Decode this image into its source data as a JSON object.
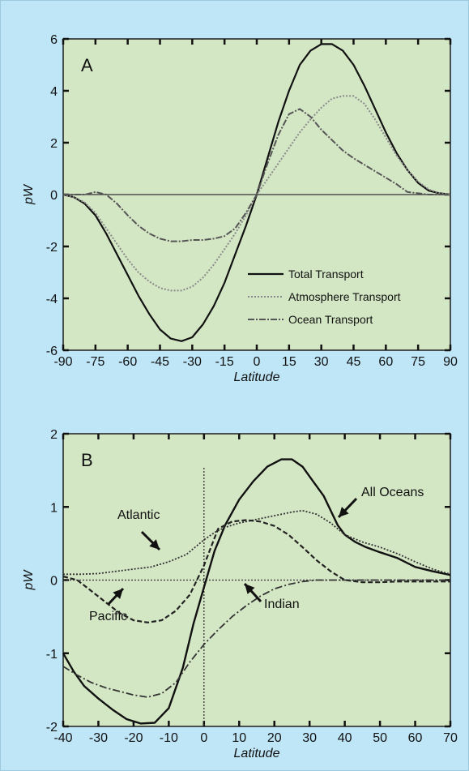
{
  "colors": {
    "page_background": "#bfe6f7",
    "plot_background": "#d4e7c5",
    "ink": "#111111",
    "grey_curve": "#8a8a8a"
  },
  "chart_data": [
    {
      "type": "line",
      "panel_label": "A",
      "xlabel": "Latitude",
      "ylabel": "pW",
      "xlim": [
        -90,
        90
      ],
      "ylim": [
        -6,
        6
      ],
      "x_ticks": [
        "-90",
        "-75",
        "-60",
        "-45",
        "-30",
        "-15",
        "0",
        "15",
        "30",
        "45",
        "60",
        "75",
        "90"
      ],
      "y_ticks": [
        "-6",
        "-4",
        "-2",
        "0",
        "2",
        "4",
        "6"
      ],
      "grid": false,
      "legend": {
        "position": "lower-right",
        "entries": [
          "Total Transport",
          "Atmosphere Transport",
          "Ocean Transport"
        ]
      },
      "series": [
        {
          "name": "Total Transport",
          "x": [
            -90,
            -85,
            -80,
            -75,
            -70,
            -65,
            -60,
            -55,
            -50,
            -45,
            -40,
            -35,
            -30,
            -25,
            -20,
            -15,
            -10,
            -5,
            0,
            5,
            10,
            15,
            20,
            25,
            30,
            35,
            40,
            45,
            50,
            55,
            60,
            65,
            70,
            75,
            80,
            85,
            90
          ],
          "y": [
            0,
            -0.1,
            -0.35,
            -0.8,
            -1.5,
            -2.3,
            -3.1,
            -3.9,
            -4.6,
            -5.2,
            -5.55,
            -5.65,
            -5.5,
            -5.0,
            -4.3,
            -3.4,
            -2.3,
            -1.2,
            0,
            1.4,
            2.8,
            4.0,
            5.0,
            5.55,
            5.8,
            5.8,
            5.55,
            5.0,
            4.2,
            3.3,
            2.4,
            1.6,
            0.95,
            0.45,
            0.15,
            0.05,
            0
          ]
        },
        {
          "name": "Atmosphere Transport",
          "x": [
            -90,
            -85,
            -80,
            -75,
            -70,
            -65,
            -60,
            -55,
            -50,
            -45,
            -40,
            -35,
            -30,
            -25,
            -20,
            -15,
            -10,
            -5,
            0,
            5,
            10,
            15,
            20,
            25,
            30,
            35,
            40,
            45,
            50,
            55,
            60,
            65,
            70,
            75,
            80,
            85,
            90
          ],
          "y": [
            0,
            -0.1,
            -0.3,
            -0.7,
            -1.3,
            -1.9,
            -2.5,
            -3.0,
            -3.35,
            -3.6,
            -3.7,
            -3.7,
            -3.55,
            -3.2,
            -2.7,
            -2.1,
            -1.5,
            -0.8,
            0,
            0.6,
            1.2,
            1.8,
            2.4,
            2.9,
            3.35,
            3.7,
            3.8,
            3.8,
            3.5,
            2.9,
            2.2,
            1.5,
            0.95,
            0.5,
            0.2,
            0.05,
            0
          ]
        },
        {
          "name": "Ocean Transport",
          "x": [
            -90,
            -85,
            -80,
            -75,
            -70,
            -65,
            -60,
            -55,
            -50,
            -45,
            -40,
            -35,
            -30,
            -25,
            -20,
            -15,
            -10,
            -5,
            0,
            5,
            10,
            15,
            20,
            25,
            30,
            35,
            40,
            45,
            50,
            55,
            60,
            65,
            70,
            75,
            80,
            85,
            90
          ],
          "y": [
            0,
            0,
            0,
            0.1,
            0,
            -0.35,
            -0.8,
            -1.2,
            -1.5,
            -1.7,
            -1.8,
            -1.8,
            -1.75,
            -1.75,
            -1.7,
            -1.6,
            -1.3,
            -0.7,
            0,
            1.2,
            2.3,
            3.1,
            3.3,
            3.0,
            2.5,
            2.1,
            1.7,
            1.4,
            1.15,
            0.9,
            0.65,
            0.4,
            0.1,
            0.05,
            0,
            0,
            0
          ]
        }
      ]
    },
    {
      "type": "line",
      "panel_label": "B",
      "xlabel": "Latitude",
      "ylabel": "pW",
      "xlim": [
        -40,
        70
      ],
      "ylim": [
        -2,
        2
      ],
      "x_ticks": [
        "-40",
        "-30",
        "-20",
        "-10",
        "0",
        "10",
        "20",
        "30",
        "40",
        "50",
        "60",
        "70"
      ],
      "y_ticks": [
        "-2",
        "-1",
        "0",
        "1",
        "2"
      ],
      "grid": false,
      "annotations": [
        "All Oceans",
        "Atlantic",
        "Pacific",
        "Indian"
      ],
      "series": [
        {
          "name": "All Oceans",
          "x": [
            -40,
            -37,
            -34,
            -30,
            -26,
            -22,
            -18,
            -14,
            -10,
            -6,
            -3,
            0,
            3,
            6,
            10,
            14,
            18,
            22,
            25,
            28,
            31,
            34,
            36,
            38,
            40,
            43,
            46,
            50,
            55,
            60,
            65,
            70
          ],
          "y": [
            -1.0,
            -1.25,
            -1.45,
            -1.62,
            -1.77,
            -1.9,
            -1.96,
            -1.95,
            -1.75,
            -1.2,
            -0.6,
            -0.1,
            0.4,
            0.75,
            1.1,
            1.35,
            1.55,
            1.65,
            1.65,
            1.55,
            1.35,
            1.15,
            0.95,
            0.75,
            0.62,
            0.52,
            0.45,
            0.38,
            0.3,
            0.18,
            0.12,
            0.07
          ]
        },
        {
          "name": "Atlantic",
          "x": [
            -40,
            -35,
            -30,
            -25,
            -20,
            -15,
            -10,
            -5,
            0,
            3,
            6,
            10,
            15,
            20,
            25,
            28,
            32,
            36,
            40,
            45,
            50,
            55,
            60,
            65,
            70
          ],
          "y": [
            0.08,
            0.08,
            0.09,
            0.12,
            0.15,
            0.18,
            0.25,
            0.35,
            0.55,
            0.65,
            0.72,
            0.78,
            0.83,
            0.88,
            0.93,
            0.95,
            0.9,
            0.78,
            0.62,
            0.52,
            0.45,
            0.36,
            0.25,
            0.15,
            0.08
          ]
        },
        {
          "name": "Pacific",
          "x": [
            -40,
            -36,
            -32,
            -28,
            -24,
            -20,
            -16,
            -12,
            -8,
            -4,
            0,
            4,
            8,
            12,
            16,
            20,
            24,
            28,
            32,
            36,
            40,
            45,
            50,
            55,
            60,
            65,
            70
          ],
          "y": [
            0.05,
            0.0,
            -0.15,
            -0.3,
            -0.45,
            -0.55,
            -0.58,
            -0.55,
            -0.42,
            -0.2,
            0.2,
            0.7,
            0.8,
            0.82,
            0.8,
            0.74,
            0.62,
            0.45,
            0.27,
            0.12,
            0.0,
            -0.03,
            -0.03,
            -0.02,
            -0.02,
            -0.02,
            -0.02
          ]
        },
        {
          "name": "Indian",
          "x": [
            -40,
            -36,
            -32,
            -28,
            -24,
            -20,
            -16,
            -12,
            -8,
            -4,
            0,
            4,
            8,
            12,
            16,
            20,
            24,
            28,
            32,
            40,
            50,
            60,
            70
          ],
          "y": [
            -1.18,
            -1.3,
            -1.4,
            -1.47,
            -1.52,
            -1.57,
            -1.6,
            -1.55,
            -1.4,
            -1.12,
            -0.88,
            -0.68,
            -0.5,
            -0.35,
            -0.22,
            -0.12,
            -0.06,
            -0.02,
            0.0,
            0.0,
            0.0,
            0.0,
            0.0
          ]
        }
      ]
    }
  ]
}
